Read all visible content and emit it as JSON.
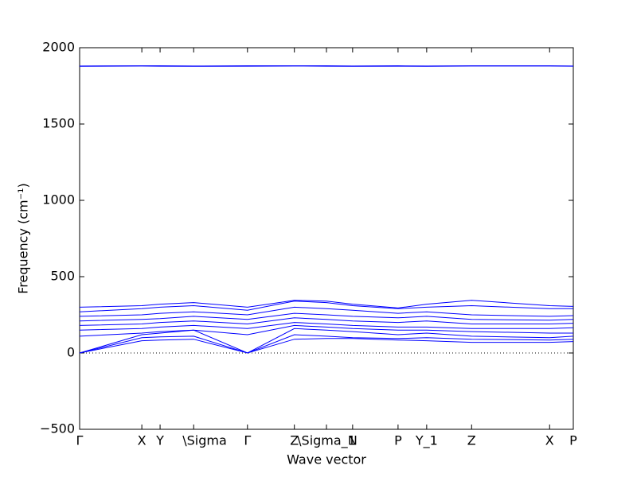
{
  "chart_data": {
    "type": "line",
    "xlabel": "Wave vector",
    "ylabel": "Frequency (cm⁻¹)",
    "color": "#0000ff",
    "x": [
      0,
      0.126,
      0.163,
      0.231,
      0.34,
      0.435,
      0.5,
      0.553,
      0.645,
      0.703,
      0.794,
      0.952,
      1.0
    ],
    "series": [
      {
        "values": [
          0,
          80,
          85,
          90,
          0,
          90,
          95,
          95,
          85,
          80,
          70,
          70,
          75
        ]
      },
      {
        "values": [
          0,
          100,
          105,
          110,
          0,
          120,
          110,
          100,
          95,
          100,
          90,
          85,
          90
        ]
      },
      {
        "values": [
          0,
          120,
          130,
          150,
          0,
          160,
          150,
          140,
          120,
          130,
          110,
          100,
          110
        ]
      },
      {
        "values": [
          110,
          130,
          140,
          150,
          120,
          180,
          170,
          160,
          150,
          150,
          140,
          130,
          130
        ]
      },
      {
        "values": [
          150,
          160,
          170,
          180,
          160,
          200,
          190,
          180,
          170,
          170,
          160,
          160,
          165
        ]
      },
      {
        "values": [
          180,
          190,
          200,
          210,
          190,
          230,
          220,
          210,
          200,
          210,
          190,
          190,
          195
        ]
      },
      {
        "values": [
          210,
          220,
          225,
          240,
          220,
          260,
          250,
          240,
          230,
          240,
          220,
          215,
          220
        ]
      },
      {
        "values": [
          240,
          250,
          260,
          270,
          250,
          300,
          290,
          280,
          260,
          270,
          250,
          240,
          245
        ]
      },
      {
        "values": [
          270,
          290,
          300,
          310,
          280,
          340,
          330,
          310,
          290,
          300,
          310,
          290,
          290
        ]
      },
      {
        "values": [
          300,
          310,
          320,
          330,
          300,
          345,
          340,
          320,
          295,
          320,
          345,
          310,
          305
        ]
      },
      {
        "values": [
          1880,
          1882,
          1882,
          1880,
          1881,
          1882,
          1881,
          1880,
          1881,
          1880,
          1882,
          1882,
          1880
        ]
      },
      {
        "values": [
          1878,
          1880,
          1879,
          1878,
          1879,
          1880,
          1879,
          1878,
          1879,
          1878,
          1880,
          1880,
          1879
        ]
      }
    ],
    "xlim": [
      0,
      1.0
    ],
    "xticks": [
      {
        "value": 0,
        "label": "Γ"
      },
      {
        "value": 0.126,
        "label": "X"
      },
      {
        "value": 0.163,
        "label": "Y"
      },
      {
        "value": 0.231,
        "label": "\\Sigma"
      },
      {
        "value": 0.34,
        "label": "Γ"
      },
      {
        "value": 0.435,
        "label": "Z"
      },
      {
        "value": 0.5,
        "label": "\\Sigma_1"
      },
      {
        "value": 0.553,
        "label": "N"
      },
      {
        "value": 0.645,
        "label": "P"
      },
      {
        "value": 0.703,
        "label": "Y_1"
      },
      {
        "value": 0.794,
        "label": "Z"
      },
      {
        "value": 0.952,
        "label": "X"
      },
      {
        "value": 1.0,
        "label": "P"
      }
    ],
    "ylim": [
      -500,
      2000
    ],
    "yticks": [
      {
        "value": -500,
        "label": "−500"
      },
      0,
      500,
      1000,
      1500,
      2000
    ],
    "hline": 0
  }
}
